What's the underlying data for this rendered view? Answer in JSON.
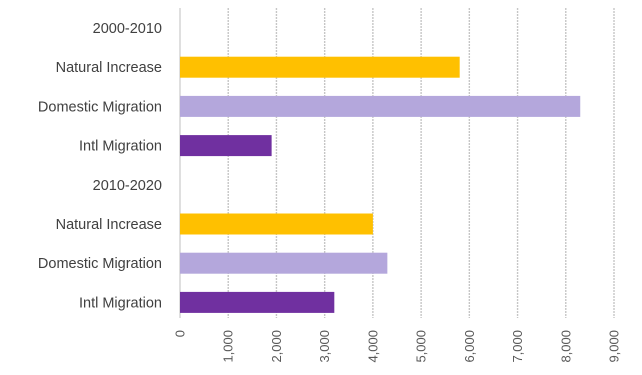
{
  "chart_data": {
    "type": "bar",
    "orientation": "horizontal",
    "title": "",
    "xlabel": "",
    "ylabel": "",
    "xlim": [
      0,
      9000
    ],
    "x_ticks": [
      0,
      1000,
      2000,
      3000,
      4000,
      5000,
      6000,
      7000,
      8000,
      9000
    ],
    "x_tick_labels": [
      "0",
      "1,000",
      "2,000",
      "3,000",
      "4,000",
      "5,000",
      "6,000",
      "7,000",
      "8,000",
      "9,000"
    ],
    "grid": true,
    "legend": "none",
    "categories": [
      "2000-2010",
      "Natural Increase",
      "Domestic Migration",
      "Intl Migration",
      "2010-2020",
      "Natural Increase",
      "Domestic Migration",
      "Intl Migration"
    ],
    "values": [
      null,
      5800,
      8300,
      1900,
      null,
      4000,
      4300,
      3200
    ],
    "bar_colors": [
      "",
      "#FFC000",
      "#B4A7DC",
      "#7030A0",
      "",
      "#FFC000",
      "#B4A7DC",
      "#7030A0"
    ]
  }
}
